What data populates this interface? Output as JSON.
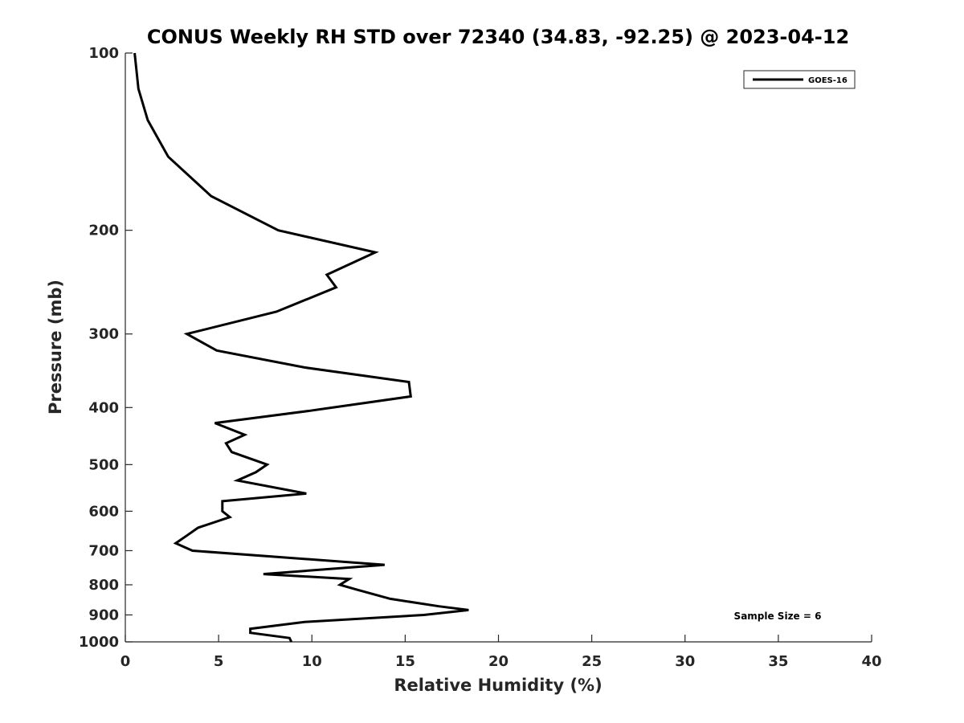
{
  "chart_data": {
    "type": "line",
    "title": "CONUS Weekly RH STD over 72340 (34.83, -92.25) @ 2023-04-12",
    "xlabel": "Relative Humidity (%)",
    "ylabel": "Pressure (mb)",
    "xlim": [
      0,
      40
    ],
    "ylim": [
      100,
      1000
    ],
    "y_scale": "log",
    "y_reversed": true,
    "x_ticks": [
      0,
      5,
      10,
      15,
      20,
      25,
      30,
      35,
      40
    ],
    "y_ticks": [
      100,
      200,
      300,
      400,
      500,
      600,
      700,
      800,
      900,
      1000
    ],
    "grid": false,
    "legend_position": "top-right",
    "series": [
      {
        "name": "GOES-16",
        "color": "#000000",
        "points": [
          [
            0.5,
            100
          ],
          [
            0.7,
            115
          ],
          [
            1.2,
            130
          ],
          [
            2.3,
            150
          ],
          [
            4.6,
            175
          ],
          [
            8.2,
            200
          ],
          [
            13.4,
            218
          ],
          [
            10.8,
            238
          ],
          [
            11.3,
            250
          ],
          [
            8.1,
            275
          ],
          [
            3.3,
            300
          ],
          [
            4.9,
            320
          ],
          [
            9.6,
            342
          ],
          [
            15.2,
            362
          ],
          [
            15.3,
            383
          ],
          [
            9.9,
            405
          ],
          [
            4.8,
            425
          ],
          [
            6.4,
            445
          ],
          [
            5.4,
            460
          ],
          [
            5.7,
            476
          ],
          [
            7.6,
            500
          ],
          [
            7.0,
            515
          ],
          [
            6.0,
            532
          ],
          [
            9.7,
            560
          ],
          [
            5.2,
            577
          ],
          [
            5.2,
            600
          ],
          [
            5.6,
            614
          ],
          [
            3.9,
            640
          ],
          [
            3.3,
            660
          ],
          [
            2.7,
            680
          ],
          [
            3.6,
            700
          ],
          [
            13.9,
            740
          ],
          [
            7.4,
            767
          ],
          [
            12.0,
            782
          ],
          [
            11.5,
            800
          ],
          [
            12.4,
            815
          ],
          [
            14.2,
            845
          ],
          [
            16.8,
            870
          ],
          [
            18.4,
            883
          ],
          [
            16.0,
            900
          ],
          [
            9.6,
            925
          ],
          [
            6.7,
            950
          ],
          [
            6.7,
            965
          ],
          [
            8.8,
            985
          ],
          [
            8.9,
            1000
          ]
        ]
      }
    ],
    "annotations": [
      "Sample Size = 6"
    ]
  }
}
